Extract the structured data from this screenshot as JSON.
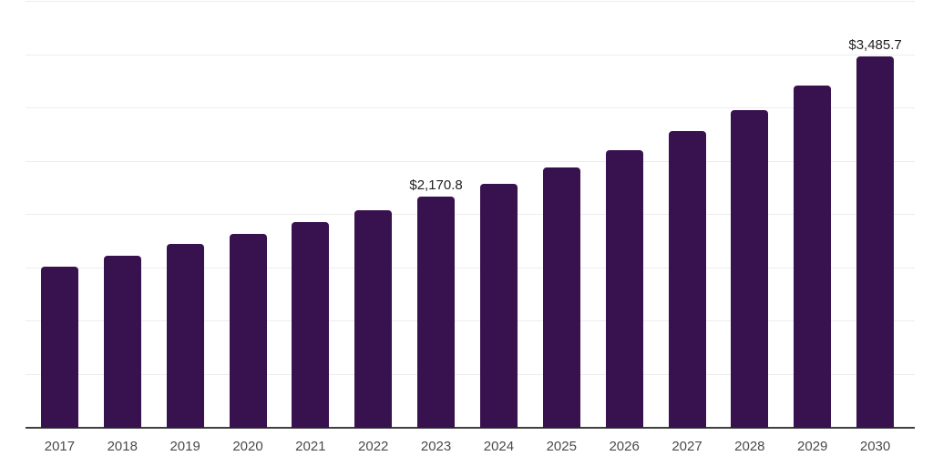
{
  "chart_data": {
    "type": "bar",
    "title": "",
    "xlabel": "",
    "ylabel": "",
    "categories": [
      "2017",
      "2018",
      "2019",
      "2020",
      "2021",
      "2022",
      "2023",
      "2024",
      "2025",
      "2026",
      "2027",
      "2028",
      "2029",
      "2030"
    ],
    "values": [
      1513,
      1618,
      1726,
      1822,
      1930,
      2043,
      2170.8,
      2293,
      2441,
      2605,
      2786,
      2980,
      3215,
      3485.7
    ],
    "labeled_points": [
      {
        "category": "2023",
        "index": 6,
        "label": "$2,170.8"
      },
      {
        "category": "2030",
        "index": 13,
        "label": "$3,485.7"
      }
    ],
    "ylim": [
      0,
      4000
    ],
    "gridline_step": 500,
    "grid": true,
    "legend": "none",
    "colors": {
      "bar": "#38114F",
      "axis_line": "#3F3F3F",
      "gridline": "#EDEDED",
      "tick_label": "#4A4A4A",
      "data_label": "#1F1F1F",
      "background": "#FFFFFF"
    }
  }
}
